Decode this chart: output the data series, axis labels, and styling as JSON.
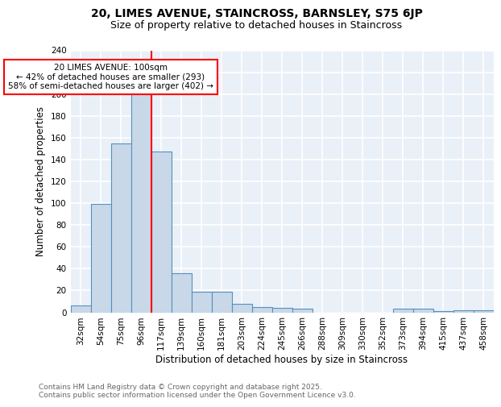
{
  "title_line1": "20, LIMES AVENUE, STAINCROSS, BARNSLEY, S75 6JP",
  "title_line2": "Size of property relative to detached houses in Staincross",
  "xlabel": "Distribution of detached houses by size in Staincross",
  "ylabel": "Number of detached properties",
  "bar_color": "#c8d8e8",
  "bar_edge_color": "#5590c0",
  "categories": [
    "32sqm",
    "54sqm",
    "75sqm",
    "96sqm",
    "117sqm",
    "139sqm",
    "160sqm",
    "181sqm",
    "203sqm",
    "224sqm",
    "245sqm",
    "266sqm",
    "288sqm",
    "309sqm",
    "330sqm",
    "352sqm",
    "373sqm",
    "394sqm",
    "415sqm",
    "437sqm",
    "458sqm"
  ],
  "values": [
    6,
    99,
    155,
    200,
    147,
    36,
    19,
    19,
    8,
    5,
    4,
    3,
    0,
    0,
    0,
    0,
    3,
    3,
    1,
    2,
    2
  ],
  "red_line_index": 3,
  "annotation_text": "20 LIMES AVENUE: 100sqm\n← 42% of detached houses are smaller (293)\n58% of semi-detached houses are larger (402) →",
  "annotation_box_color": "white",
  "annotation_box_edge": "red",
  "ylim": [
    0,
    240
  ],
  "yticks": [
    0,
    20,
    40,
    60,
    80,
    100,
    120,
    140,
    160,
    180,
    200,
    220,
    240
  ],
  "footer_text": "Contains HM Land Registry data © Crown copyright and database right 2025.\nContains public sector information licensed under the Open Government Licence v3.0.",
  "background_color": "#eaf0f8",
  "grid_color": "#ffffff",
  "fig_bg": "#ffffff",
  "title_fontsize": 10,
  "subtitle_fontsize": 9,
  "axis_label_fontsize": 8.5,
  "tick_fontsize": 7.5,
  "annotation_fontsize": 7.5,
  "footer_fontsize": 6.5
}
